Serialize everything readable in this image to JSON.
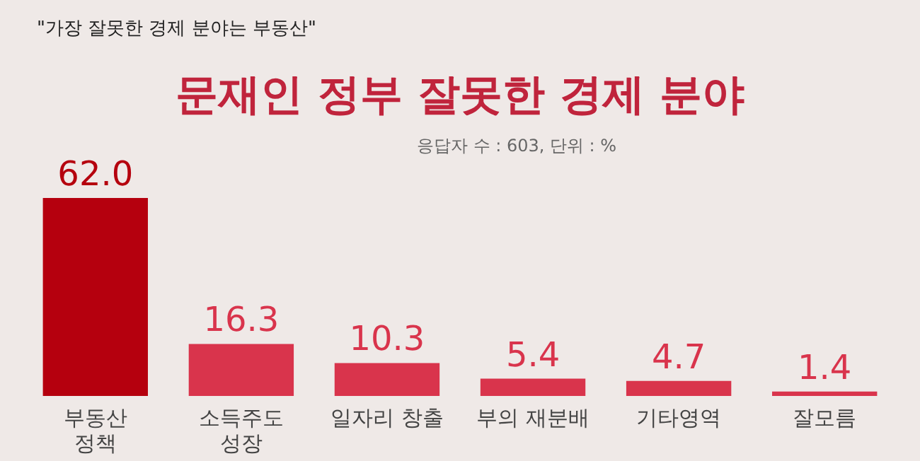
{
  "chart_data": {
    "type": "bar",
    "title": "문재인 정부 잘못한 경제 분야",
    "subtitle": "응답자 수 : 603, 단위 : %",
    "annotations": [
      "\"가장 잘못한 경제 분야는 부동산\""
    ],
    "categories": [
      "부동산\n정책",
      "소득주도\n성장",
      "일자리 창출",
      "부의 재분배",
      "기타영역",
      "잘모름"
    ],
    "values": [
      62.0,
      16.3,
      10.3,
      5.4,
      4.7,
      1.4
    ],
    "value_labels": [
      "62.0",
      "16.3",
      "10.3",
      "5.4",
      "4.7",
      "1.4"
    ],
    "colors": [
      "#b5000e",
      "#d9344c",
      "#d9344c",
      "#d9344c",
      "#d9344c",
      "#d9344c"
    ],
    "ylim": [
      0,
      62.0
    ]
  }
}
